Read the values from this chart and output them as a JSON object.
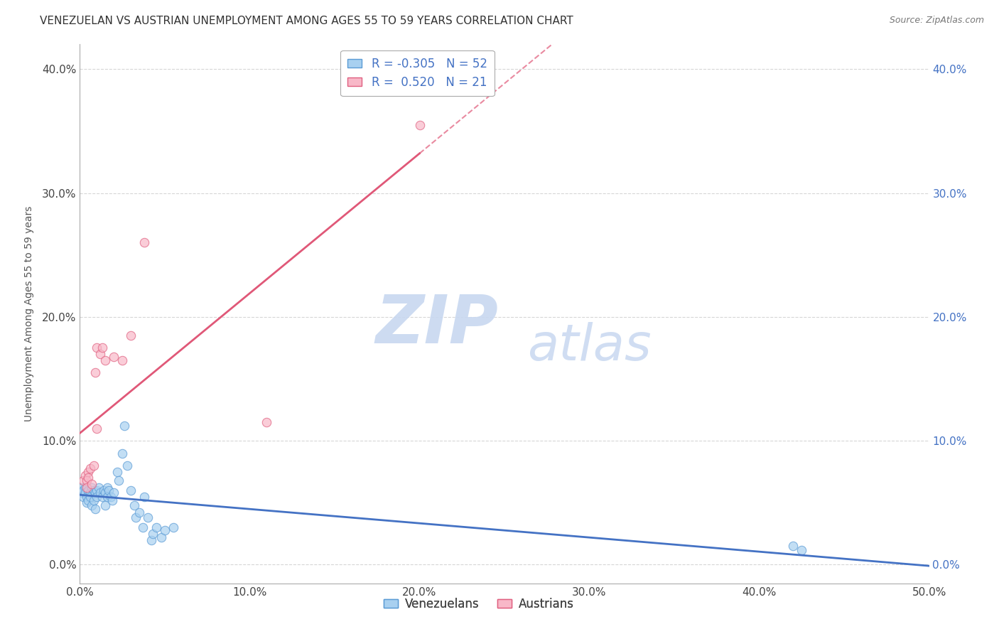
{
  "title": "VENEZUELAN VS AUSTRIAN UNEMPLOYMENT AMONG AGES 55 TO 59 YEARS CORRELATION CHART",
  "source": "Source: ZipAtlas.com",
  "ylabel": "Unemployment Among Ages 55 to 59 years",
  "xlim": [
    0.0,
    0.5
  ],
  "ylim": [
    -0.015,
    0.42
  ],
  "xticks": [
    0.0,
    0.1,
    0.2,
    0.3,
    0.4,
    0.5
  ],
  "yticks": [
    0.0,
    0.1,
    0.2,
    0.3,
    0.4
  ],
  "venezuelan_scatter": [
    [
      0.001,
      0.062
    ],
    [
      0.001,
      0.058
    ],
    [
      0.002,
      0.055
    ],
    [
      0.002,
      0.06
    ],
    [
      0.003,
      0.062
    ],
    [
      0.003,
      0.058
    ],
    [
      0.004,
      0.055
    ],
    [
      0.004,
      0.05
    ],
    [
      0.005,
      0.06
    ],
    [
      0.005,
      0.052
    ],
    [
      0.006,
      0.058
    ],
    [
      0.006,
      0.055
    ],
    [
      0.007,
      0.062
    ],
    [
      0.007,
      0.048
    ],
    [
      0.008,
      0.06
    ],
    [
      0.008,
      0.052
    ],
    [
      0.009,
      0.045
    ],
    [
      0.009,
      0.058
    ],
    [
      0.01,
      0.06
    ],
    [
      0.01,
      0.055
    ],
    [
      0.011,
      0.062
    ],
    [
      0.012,
      0.058
    ],
    [
      0.013,
      0.055
    ],
    [
      0.014,
      0.06
    ],
    [
      0.015,
      0.058
    ],
    [
      0.015,
      0.048
    ],
    [
      0.016,
      0.062
    ],
    [
      0.016,
      0.055
    ],
    [
      0.017,
      0.06
    ],
    [
      0.018,
      0.055
    ],
    [
      0.019,
      0.052
    ],
    [
      0.02,
      0.058
    ],
    [
      0.022,
      0.075
    ],
    [
      0.023,
      0.068
    ],
    [
      0.025,
      0.09
    ],
    [
      0.026,
      0.112
    ],
    [
      0.028,
      0.08
    ],
    [
      0.03,
      0.06
    ],
    [
      0.032,
      0.048
    ],
    [
      0.033,
      0.038
    ],
    [
      0.035,
      0.042
    ],
    [
      0.037,
      0.03
    ],
    [
      0.038,
      0.055
    ],
    [
      0.04,
      0.038
    ],
    [
      0.042,
      0.02
    ],
    [
      0.043,
      0.025
    ],
    [
      0.045,
      0.03
    ],
    [
      0.048,
      0.022
    ],
    [
      0.05,
      0.028
    ],
    [
      0.055,
      0.03
    ],
    [
      0.42,
      0.015
    ],
    [
      0.425,
      0.012
    ]
  ],
  "austrian_scatter": [
    [
      0.002,
      0.068
    ],
    [
      0.003,
      0.072
    ],
    [
      0.004,
      0.068
    ],
    [
      0.004,
      0.062
    ],
    [
      0.005,
      0.075
    ],
    [
      0.005,
      0.07
    ],
    [
      0.006,
      0.078
    ],
    [
      0.007,
      0.065
    ],
    [
      0.008,
      0.08
    ],
    [
      0.009,
      0.155
    ],
    [
      0.01,
      0.175
    ],
    [
      0.01,
      0.11
    ],
    [
      0.012,
      0.17
    ],
    [
      0.013,
      0.175
    ],
    [
      0.015,
      0.165
    ],
    [
      0.02,
      0.168
    ],
    [
      0.025,
      0.165
    ],
    [
      0.03,
      0.185
    ],
    [
      0.038,
      0.26
    ],
    [
      0.11,
      0.115
    ],
    [
      0.2,
      0.355
    ]
  ],
  "venezuelan_color": "#a8d0f0",
  "venezuelan_edge_color": "#5b9bd5",
  "austrian_color": "#f8b8c8",
  "austrian_edge_color": "#e06080",
  "venezuelan_line_color": "#4472c4",
  "austrian_line_color": "#e05878",
  "R_venezuelan": -0.305,
  "N_venezuelan": 52,
  "R_austrian": 0.52,
  "N_austrian": 21,
  "background_color": "#ffffff",
  "grid_color": "#cccccc",
  "right_tick_color": "#4472c4",
  "left_tick_color": "#444444",
  "bottom_tick_color": "#444444",
  "legend_label_color": "#4472c4",
  "title_fontsize": 11,
  "axis_label_fontsize": 10
}
